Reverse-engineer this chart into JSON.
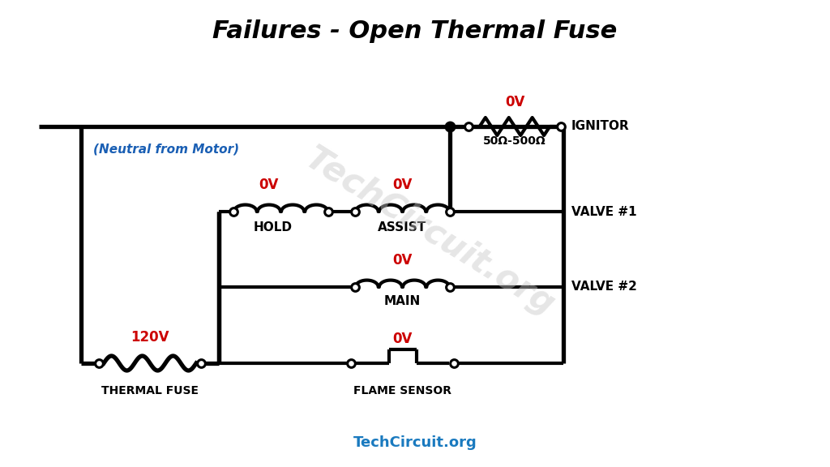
{
  "title": "Failures - Open Thermal Fuse",
  "title_fontsize": 22,
  "bg_color": "#ffffff",
  "wire_color": "#000000",
  "wire_lw": 3.0,
  "voltage_color": "#cc0000",
  "blue_color": "#1a5fb4",
  "watermark_text": "TechCircuit.org",
  "footer_text": "TechCircuit.org",
  "footer_color": "#1a7abf",
  "neutral_label": "(Neutral from Motor)",
  "thermal_fuse_label": "THERMAL FUSE",
  "thermal_fuse_voltage": "120V",
  "hold_label": "HOLD",
  "hold_voltage": "0V",
  "assist_label": "ASSIST",
  "assist_voltage": "0V",
  "main_label": "MAIN",
  "main_voltage": "0V",
  "ignitor_label": "IGNITOR",
  "ignitor_voltage": "0V",
  "ignitor_resistance": "50Ω-500Ω",
  "valve1_label": "VALVE #1",
  "valve2_label": "VALVE #2",
  "flame_sensor_label": "FLAME SENSOR",
  "flame_sensor_voltage": "0V"
}
